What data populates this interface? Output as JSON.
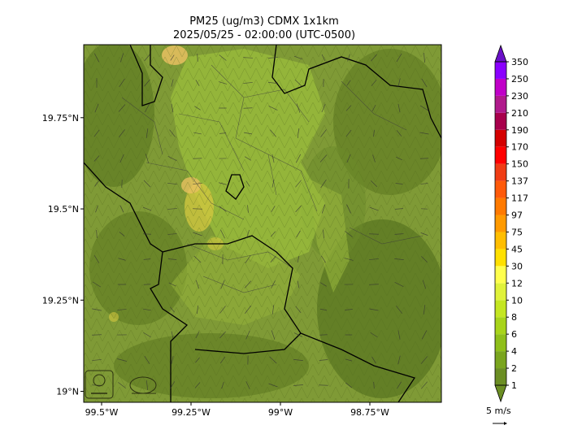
{
  "title": {
    "line1": "PM25 (ug/m3) CDMX 1x1km",
    "line2": "2025/05/25 - 02:00:00 (UTC-0500)"
  },
  "axes": {
    "lat_ticks": [
      {
        "label": "19.75°N",
        "lat": 19.75
      },
      {
        "label": "19.5°N",
        "lat": 19.5
      },
      {
        "label": "19.25°N",
        "lat": 19.25
      },
      {
        "label": "19°N",
        "lat": 19.0
      }
    ],
    "lon_ticks": [
      {
        "label": "99.5°W",
        "lon": -99.5
      },
      {
        "label": "99.25°W",
        "lon": -99.25
      },
      {
        "label": "99°W",
        "lon": -99.0
      },
      {
        "label": "98.75°W",
        "lon": -98.75
      }
    ],
    "lon_range": [
      -99.55,
      -98.55
    ],
    "lat_range": [
      18.97,
      19.95
    ]
  },
  "colorbar": {
    "levels": [
      "1",
      "2",
      "4",
      "6",
      "8",
      "10",
      "12",
      "30",
      "45",
      "75",
      "97",
      "117",
      "137",
      "150",
      "170",
      "190",
      "210",
      "230",
      "250",
      "350"
    ],
    "colors": [
      "#6b8e23",
      "#7aa51e",
      "#8fbf1a",
      "#a8d41a",
      "#c4e621",
      "#e0f23a",
      "#ffff4d",
      "#ffe000",
      "#ffbe00",
      "#ff9a00",
      "#ff7a00",
      "#ff5a0a",
      "#f03c14",
      "#ff0000",
      "#d40000",
      "#a8004c",
      "#b01a8c",
      "#c000c8",
      "#8a00ff",
      "#6a10c8"
    ]
  },
  "wind_key": {
    "label": "5 m/s"
  },
  "map": {
    "base_color": "#7f9a36",
    "hotspot_colors": [
      "#d4c840",
      "#e8c060"
    ]
  }
}
